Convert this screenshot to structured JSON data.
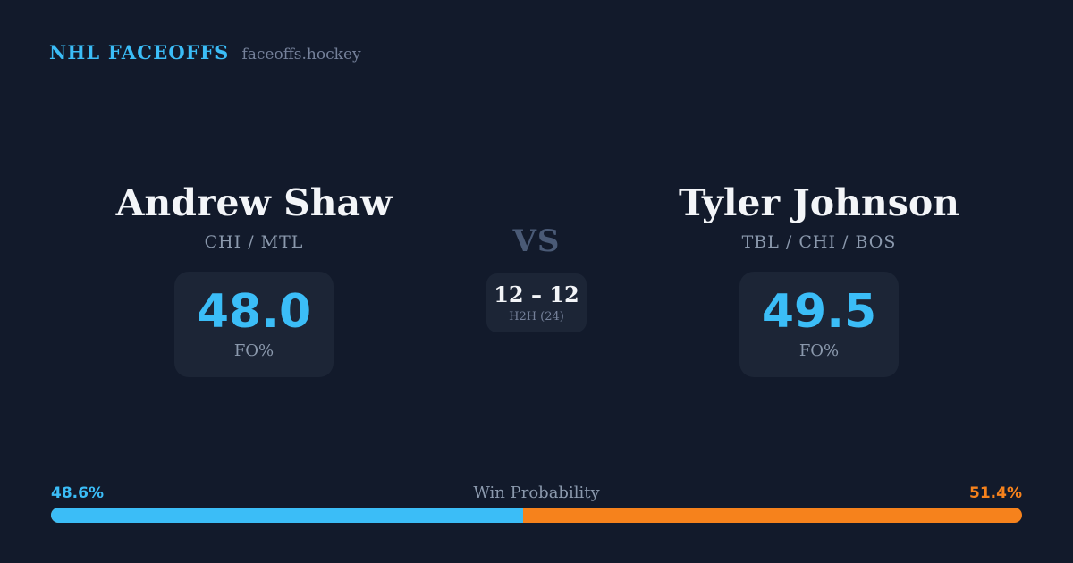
{
  "header": {
    "brand": "NHL FACEOFFS",
    "site": "faceoffs.hockey"
  },
  "matchup": {
    "vs_label": "VS",
    "h2h": {
      "record": "12 – 12",
      "label": "H2H (24)"
    },
    "players": [
      {
        "name": "Andrew Shaw",
        "teams": "CHI / MTL",
        "fo_pct": "48.0",
        "stat_label": "FO%"
      },
      {
        "name": "Tyler Johnson",
        "teams": "TBL / CHI / BOS",
        "fo_pct": "49.5",
        "stat_label": "FO%"
      }
    ]
  },
  "win_probability": {
    "title": "Win Probability",
    "left_pct": 48.6,
    "right_pct": 51.4,
    "left_pct_label": "48.6%",
    "right_pct_label": "51.4%"
  },
  "colors": {
    "background": "#121a2b",
    "card": "#1c2536",
    "accent_blue": "#3bbdf7",
    "accent_orange": "#f6821c",
    "text_primary": "#f3f5f8",
    "text_muted": "#8b99ad"
  }
}
